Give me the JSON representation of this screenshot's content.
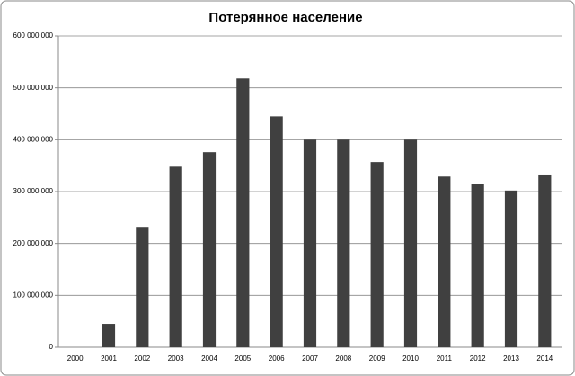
{
  "chart_data": {
    "type": "bar",
    "title": "Потерянное население",
    "categories": [
      "2000",
      "2001",
      "2002",
      "2003",
      "2004",
      "2005",
      "2006",
      "2007",
      "2008",
      "2009",
      "2010",
      "2011",
      "2012",
      "2013",
      "2014"
    ],
    "values": [
      0,
      45000000,
      232000000,
      348000000,
      376000000,
      518000000,
      445000000,
      400000000,
      400000000,
      357000000,
      400000000,
      329000000,
      315000000,
      302000000,
      333000000
    ],
    "color": "#404040",
    "ylim": [
      0,
      600000000
    ],
    "yticks": [
      0,
      {
        "value": 100000000,
        "label": "100 000 000"
      },
      {
        "value": 200000000,
        "label": "200 000 000"
      },
      {
        "value": 300000000,
        "label": "300 000 000"
      },
      {
        "value": 400000000,
        "label": "400 000 000"
      },
      {
        "value": 500000000,
        "label": "500 000 000"
      },
      {
        "value": 600000000,
        "label": "600 000 000"
      }
    ],
    "grid": true
  }
}
